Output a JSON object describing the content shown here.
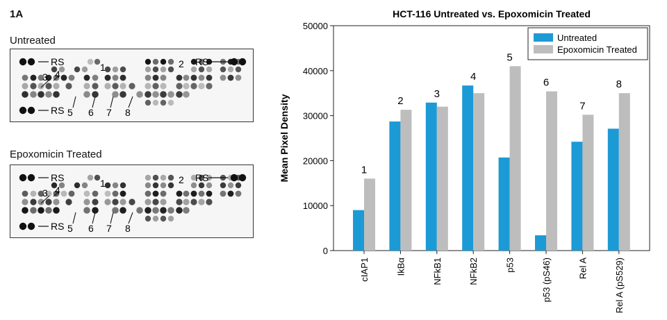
{
  "figure_label": "1A",
  "arrays": [
    {
      "title": "Untreated",
      "ref_label": "RS",
      "callouts": [
        "1",
        "2",
        "3",
        "4",
        "5",
        "6",
        "7",
        "8"
      ]
    },
    {
      "title": "Epoxomicin Treated",
      "ref_label": "RS",
      "callouts": [
        "1",
        "2",
        "3",
        "4",
        "5",
        "6",
        "7",
        "8"
      ]
    }
  ],
  "colors": {
    "untreated": "#1c9ad6",
    "treated": "#bdbdbd",
    "spot": "#111111"
  },
  "chart_data": {
    "type": "bar",
    "title": "HCT-116 Untreated vs. Epoxomicin Treated",
    "ylabel": "Mean Pixel Density",
    "xlabel": "",
    "ylim": [
      0,
      50000
    ],
    "yticks": [
      "0",
      "10000",
      "20000",
      "30000",
      "40000",
      "50000"
    ],
    "categories": [
      "cIAP1",
      "IkBα",
      "NFkB1",
      "NFkB2",
      "p53",
      "p53 (pS46)",
      "Rel A",
      "Rel A (pS529)"
    ],
    "bar_labels": [
      "1",
      "2",
      "3",
      "4",
      "5",
      "6",
      "7",
      "8"
    ],
    "series": [
      {
        "name": "Untreated",
        "values": [
          9000,
          28700,
          32900,
          36700,
          20700,
          3400,
          24200,
          27100
        ]
      },
      {
        "name": "Epoxomicin Treated",
        "values": [
          16000,
          31300,
          32000,
          35000,
          41000,
          35400,
          30200,
          35000
        ]
      }
    ],
    "legend": "top-right",
    "grid": false
  }
}
